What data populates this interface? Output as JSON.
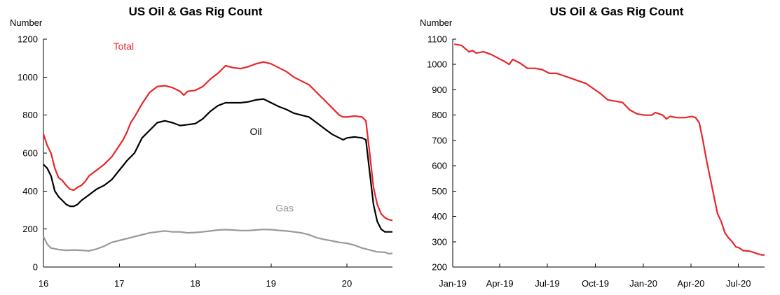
{
  "chart_data": [
    {
      "type": "line",
      "title": "US Oil & Gas Rig Count",
      "ylabel": "Number",
      "xlabel": "",
      "xlim": [
        16,
        20.6
      ],
      "ylim": [
        0,
        1200
      ],
      "xticks": [
        16,
        17,
        18,
        19,
        20
      ],
      "xtick_labels": [
        "16",
        "17",
        "18",
        "19",
        "20"
      ],
      "yticks": [
        0,
        200,
        400,
        600,
        800,
        1000,
        1200
      ],
      "ytick_labels": [
        "0",
        "200",
        "400",
        "600",
        "800",
        "1000",
        "1200"
      ],
      "grid": false,
      "legend": "inline labels",
      "series": [
        {
          "name": "Total",
          "color": "#e8262a",
          "label_at": [
            16.92,
            1145
          ],
          "points": [
            [
              16.0,
              700
            ],
            [
              16.05,
              640
            ],
            [
              16.1,
              600
            ],
            [
              16.15,
              520
            ],
            [
              16.2,
              470
            ],
            [
              16.25,
              455
            ],
            [
              16.3,
              430
            ],
            [
              16.35,
              410
            ],
            [
              16.4,
              405
            ],
            [
              16.45,
              420
            ],
            [
              16.5,
              430
            ],
            [
              16.55,
              450
            ],
            [
              16.6,
              480
            ],
            [
              16.7,
              510
            ],
            [
              16.8,
              540
            ],
            [
              16.9,
              580
            ],
            [
              17.0,
              640
            ],
            [
              17.05,
              670
            ],
            [
              17.1,
              710
            ],
            [
              17.15,
              760
            ],
            [
              17.2,
              790
            ],
            [
              17.3,
              860
            ],
            [
              17.4,
              920
            ],
            [
              17.5,
              950
            ],
            [
              17.6,
              955
            ],
            [
              17.7,
              945
            ],
            [
              17.8,
              925
            ],
            [
              17.85,
              905
            ],
            [
              17.9,
              925
            ],
            [
              18.0,
              930
            ],
            [
              18.1,
              950
            ],
            [
              18.2,
              990
            ],
            [
              18.3,
              1020
            ],
            [
              18.4,
              1060
            ],
            [
              18.5,
              1050
            ],
            [
              18.6,
              1045
            ],
            [
              18.7,
              1055
            ],
            [
              18.8,
              1070
            ],
            [
              18.9,
              1080
            ],
            [
              19.0,
              1070
            ],
            [
              19.1,
              1050
            ],
            [
              19.2,
              1030
            ],
            [
              19.3,
              1000
            ],
            [
              19.4,
              980
            ],
            [
              19.5,
              960
            ],
            [
              19.6,
              920
            ],
            [
              19.7,
              880
            ],
            [
              19.8,
              840
            ],
            [
              19.9,
              800
            ],
            [
              19.95,
              790
            ],
            [
              20.0,
              790
            ],
            [
              20.1,
              795
            ],
            [
              20.2,
              790
            ],
            [
              20.25,
              770
            ],
            [
              20.3,
              600
            ],
            [
              20.35,
              420
            ],
            [
              20.4,
              330
            ],
            [
              20.45,
              280
            ],
            [
              20.5,
              260
            ],
            [
              20.55,
              250
            ],
            [
              20.6,
              245
            ]
          ]
        },
        {
          "name": "Oil",
          "color": "#000000",
          "label_at": [
            18.72,
            695
          ],
          "points": [
            [
              16.0,
              540
            ],
            [
              16.05,
              520
            ],
            [
              16.1,
              480
            ],
            [
              16.15,
              400
            ],
            [
              16.2,
              370
            ],
            [
              16.25,
              350
            ],
            [
              16.3,
              330
            ],
            [
              16.35,
              320
            ],
            [
              16.4,
              320
            ],
            [
              16.45,
              330
            ],
            [
              16.5,
              350
            ],
            [
              16.6,
              380
            ],
            [
              16.7,
              410
            ],
            [
              16.8,
              430
            ],
            [
              16.9,
              460
            ],
            [
              17.0,
              510
            ],
            [
              17.1,
              560
            ],
            [
              17.2,
              600
            ],
            [
              17.3,
              680
            ],
            [
              17.4,
              720
            ],
            [
              17.5,
              760
            ],
            [
              17.6,
              770
            ],
            [
              17.7,
              760
            ],
            [
              17.8,
              745
            ],
            [
              17.9,
              750
            ],
            [
              18.0,
              755
            ],
            [
              18.1,
              780
            ],
            [
              18.2,
              820
            ],
            [
              18.3,
              850
            ],
            [
              18.4,
              865
            ],
            [
              18.5,
              865
            ],
            [
              18.6,
              865
            ],
            [
              18.7,
              870
            ],
            [
              18.8,
              880
            ],
            [
              18.9,
              885
            ],
            [
              19.0,
              865
            ],
            [
              19.1,
              845
            ],
            [
              19.2,
              830
            ],
            [
              19.3,
              810
            ],
            [
              19.4,
              800
            ],
            [
              19.5,
              790
            ],
            [
              19.6,
              760
            ],
            [
              19.7,
              730
            ],
            [
              19.8,
              700
            ],
            [
              19.9,
              680
            ],
            [
              19.95,
              670
            ],
            [
              20.0,
              680
            ],
            [
              20.1,
              685
            ],
            [
              20.2,
              680
            ],
            [
              20.25,
              670
            ],
            [
              20.3,
              500
            ],
            [
              20.35,
              330
            ],
            [
              20.4,
              240
            ],
            [
              20.45,
              200
            ],
            [
              20.5,
              185
            ],
            [
              20.55,
              185
            ],
            [
              20.6,
              185
            ]
          ]
        },
        {
          "name": "Gas",
          "color": "#999999",
          "label_at": [
            19.06,
            292
          ],
          "points": [
            [
              16.0,
              160
            ],
            [
              16.05,
              120
            ],
            [
              16.1,
              100
            ],
            [
              16.2,
              92
            ],
            [
              16.3,
              88
            ],
            [
              16.4,
              90
            ],
            [
              16.5,
              88
            ],
            [
              16.6,
              85
            ],
            [
              16.7,
              95
            ],
            [
              16.8,
              110
            ],
            [
              16.9,
              130
            ],
            [
              17.0,
              140
            ],
            [
              17.1,
              150
            ],
            [
              17.2,
              160
            ],
            [
              17.3,
              170
            ],
            [
              17.4,
              180
            ],
            [
              17.5,
              185
            ],
            [
              17.6,
              190
            ],
            [
              17.7,
              185
            ],
            [
              17.8,
              185
            ],
            [
              17.9,
              180
            ],
            [
              18.0,
              182
            ],
            [
              18.1,
              185
            ],
            [
              18.2,
              190
            ],
            [
              18.3,
              195
            ],
            [
              18.4,
              197
            ],
            [
              18.5,
              195
            ],
            [
              18.6,
              192
            ],
            [
              18.7,
              192
            ],
            [
              18.8,
              195
            ],
            [
              18.9,
              198
            ],
            [
              19.0,
              197
            ],
            [
              19.1,
              193
            ],
            [
              19.2,
              190
            ],
            [
              19.3,
              185
            ],
            [
              19.4,
              180
            ],
            [
              19.5,
              170
            ],
            [
              19.6,
              155
            ],
            [
              19.7,
              145
            ],
            [
              19.8,
              138
            ],
            [
              19.9,
              130
            ],
            [
              20.0,
              125
            ],
            [
              20.1,
              115
            ],
            [
              20.2,
              100
            ],
            [
              20.3,
              90
            ],
            [
              20.4,
              80
            ],
            [
              20.5,
              78
            ],
            [
              20.55,
              70
            ],
            [
              20.6,
              72
            ]
          ]
        }
      ]
    },
    {
      "type": "line",
      "title": "US Oil & Gas Rig Count",
      "ylabel": "Number",
      "xlabel": "",
      "x_is_date": true,
      "xlim": [
        "2019-01-01",
        "2020-08-20"
      ],
      "ylim": [
        200,
        1100
      ],
      "xticks": [
        "2019-01-01",
        "2019-04-01",
        "2019-07-01",
        "2019-10-01",
        "2020-01-01",
        "2020-04-01",
        "2020-07-01"
      ],
      "xtick_labels": [
        "Jan-19",
        "Apr-19",
        "Jul-19",
        "Oct-19",
        "Jan-20",
        "Apr-20",
        "Jul-20"
      ],
      "yticks": [
        200,
        300,
        400,
        500,
        600,
        700,
        800,
        900,
        1000,
        1100
      ],
      "ytick_labels": [
        "200",
        "300",
        "400",
        "500",
        "600",
        "700",
        "800",
        "900",
        "1000",
        "1100"
      ],
      "grid": false,
      "legend": "none",
      "series": [
        {
          "color": "#e8262a",
          "points": [
            [
              "2019-01-04",
              1080
            ],
            [
              "2019-01-18",
              1075
            ],
            [
              "2019-02-01",
              1050
            ],
            [
              "2019-02-08",
              1055
            ],
            [
              "2019-02-15",
              1045
            ],
            [
              "2019-03-01",
              1050
            ],
            [
              "2019-03-15",
              1040
            ],
            [
              "2019-03-29",
              1025
            ],
            [
              "2019-04-12",
              1010
            ],
            [
              "2019-04-19",
              1000
            ],
            [
              "2019-04-26",
              1020
            ],
            [
              "2019-05-10",
              1005
            ],
            [
              "2019-05-24",
              985
            ],
            [
              "2019-06-07",
              985
            ],
            [
              "2019-06-21",
              980
            ],
            [
              "2019-07-05",
              965
            ],
            [
              "2019-07-19",
              965
            ],
            [
              "2019-08-02",
              955
            ],
            [
              "2019-08-16",
              945
            ],
            [
              "2019-08-30",
              935
            ],
            [
              "2019-09-13",
              925
            ],
            [
              "2019-09-27",
              905
            ],
            [
              "2019-10-11",
              885
            ],
            [
              "2019-10-25",
              860
            ],
            [
              "2019-11-08",
              855
            ],
            [
              "2019-11-22",
              850
            ],
            [
              "2019-12-06",
              820
            ],
            [
              "2019-12-20",
              805
            ],
            [
              "2020-01-03",
              800
            ],
            [
              "2020-01-17",
              800
            ],
            [
              "2020-01-24",
              810
            ],
            [
              "2020-02-07",
              800
            ],
            [
              "2020-02-14",
              785
            ],
            [
              "2020-02-21",
              795
            ],
            [
              "2020-03-06",
              790
            ],
            [
              "2020-03-20",
              790
            ],
            [
              "2020-04-03",
              795
            ],
            [
              "2020-04-10",
              790
            ],
            [
              "2020-04-17",
              770
            ],
            [
              "2020-04-24",
              700
            ],
            [
              "2020-05-01",
              620
            ],
            [
              "2020-05-08",
              550
            ],
            [
              "2020-05-15",
              480
            ],
            [
              "2020-05-22",
              410
            ],
            [
              "2020-05-29",
              380
            ],
            [
              "2020-06-05",
              335
            ],
            [
              "2020-06-12",
              315
            ],
            [
              "2020-06-19",
              300
            ],
            [
              "2020-06-26",
              280
            ],
            [
              "2020-07-03",
              275
            ],
            [
              "2020-07-10",
              265
            ],
            [
              "2020-07-24",
              262
            ],
            [
              "2020-08-07",
              252
            ],
            [
              "2020-08-14",
              248
            ],
            [
              "2020-08-20",
              248
            ]
          ]
        }
      ]
    }
  ]
}
